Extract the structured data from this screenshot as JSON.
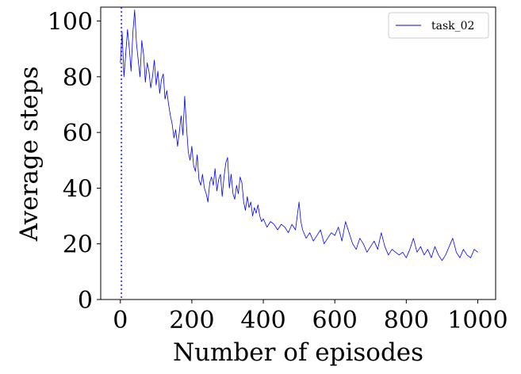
{
  "chart_data": {
    "type": "line",
    "xlabel": "Number of episodes",
    "ylabel": "Average steps",
    "xlim": [
      -55,
      1050
    ],
    "ylim": [
      0,
      105
    ],
    "xticks": [
      0,
      200,
      400,
      600,
      800,
      1000
    ],
    "yticks": [
      0,
      20,
      40,
      60,
      80,
      100
    ],
    "grid": false,
    "legend_position": "top-right",
    "vline": {
      "x": 3,
      "color": "#4a4aff",
      "style": "dotted"
    },
    "series": [
      {
        "name": "task_02",
        "color": "#0000ff",
        "x": [
          0,
          5,
          10,
          15,
          20,
          25,
          30,
          35,
          40,
          45,
          50,
          55,
          60,
          65,
          70,
          75,
          80,
          85,
          90,
          95,
          100,
          105,
          110,
          115,
          120,
          125,
          130,
          135,
          140,
          145,
          150,
          155,
          160,
          165,
          170,
          175,
          180,
          185,
          190,
          195,
          200,
          205,
          210,
          215,
          220,
          225,
          230,
          235,
          240,
          245,
          250,
          255,
          260,
          265,
          270,
          275,
          280,
          285,
          290,
          295,
          300,
          305,
          310,
          315,
          320,
          325,
          330,
          335,
          340,
          345,
          350,
          355,
          360,
          365,
          370,
          375,
          380,
          385,
          390,
          395,
          400,
          410,
          420,
          430,
          440,
          450,
          460,
          470,
          480,
          490,
          500,
          505,
          510,
          520,
          530,
          540,
          550,
          560,
          570,
          580,
          590,
          600,
          610,
          620,
          630,
          640,
          650,
          660,
          670,
          680,
          690,
          700,
          710,
          720,
          730,
          740,
          750,
          760,
          770,
          780,
          790,
          800,
          810,
          820,
          830,
          840,
          850,
          860,
          870,
          880,
          890,
          900,
          910,
          920,
          930,
          940,
          950,
          960,
          970,
          980,
          990,
          1000
        ],
        "y": [
          85,
          96,
          80,
          88,
          97,
          90,
          82,
          96,
          104,
          92,
          86,
          80,
          93,
          88,
          78,
          85,
          82,
          76,
          80,
          86,
          77,
          82,
          74,
          79,
          81,
          72,
          75,
          70,
          66,
          63,
          58,
          61,
          55,
          60,
          66,
          59,
          73,
          62,
          53,
          50,
          55,
          48,
          46,
          52,
          43,
          41,
          45,
          40,
          38,
          35,
          42,
          44,
          41,
          47,
          39,
          43,
          45,
          37,
          44,
          49,
          51,
          40,
          45,
          38,
          36,
          41,
          38,
          44,
          42,
          35,
          32,
          37,
          33,
          35,
          30,
          33,
          31,
          34,
          30,
          28,
          29,
          26,
          28,
          27,
          25,
          27,
          26,
          24,
          27,
          25,
          35,
          28,
          25,
          22,
          24,
          21,
          23,
          25,
          20,
          22,
          24,
          23,
          26,
          21,
          28,
          24,
          20,
          18,
          22,
          20,
          17,
          19,
          21,
          18,
          24,
          19,
          16,
          18,
          17,
          16,
          17,
          15,
          18,
          22,
          17,
          19,
          16,
          18,
          15,
          19,
          16,
          14,
          16,
          19,
          22,
          17,
          15,
          18,
          16,
          15,
          18,
          17
        ]
      }
    ]
  }
}
